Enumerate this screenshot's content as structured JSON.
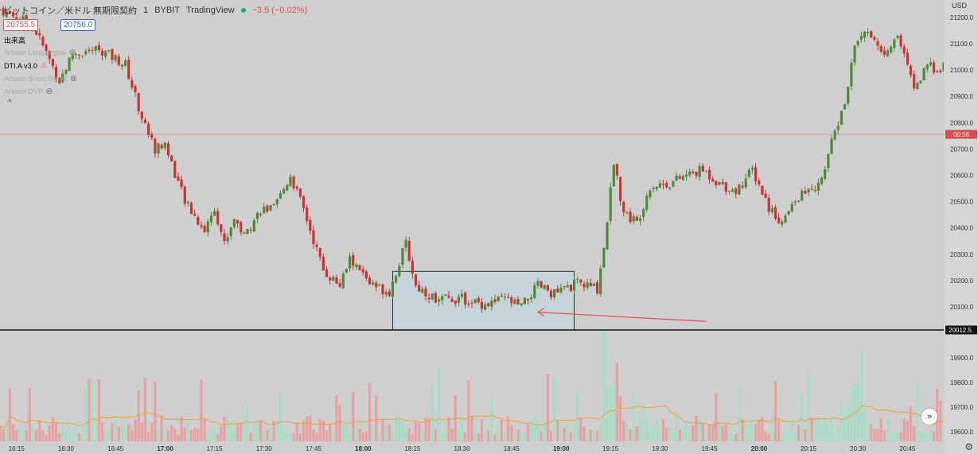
{
  "header": {
    "symbol": "ビットコイン／米ドル 無期限契約",
    "interval": "1",
    "exchange": "BYBIT",
    "platform": "TradingView",
    "change": "−3.5 (−0.02%)",
    "bid": "20755.5",
    "ask": "20756.0",
    "currency": "USD"
  },
  "indicators": [
    {
      "label": "出来高",
      "dim": false,
      "icon": ""
    },
    {
      "label": "Artisan Long Signal",
      "dim": true,
      "icon": "eye-off-icon"
    },
    {
      "label": "DTI.A v3.0",
      "dim": false,
      "icon": "warning-icon"
    },
    {
      "label": "Artisan Short Signal",
      "dim": true,
      "icon": "eye-off-icon"
    },
    {
      "label": "Artisan DVP",
      "dim": true,
      "icon": "eye-off-icon"
    }
  ],
  "collapse_glyph": "^",
  "forward_glyph": "»",
  "gear_glyph": "⚙",
  "price_axis": {
    "ticks": [
      "21200.0",
      "21100.0",
      "21000.0",
      "20900.0",
      "20800.0",
      "20700.0",
      "20600.0",
      "20500.0",
      "20400.0",
      "20300.0",
      "20200.0",
      "20100.0"
    ],
    "current_label": "00:56",
    "line_label": "20012.5"
  },
  "volume_axis": {
    "ticks": [
      "19900.0",
      "19800.0",
      "19700.0",
      "19600.0"
    ]
  },
  "time_axis": {
    "ticks": [
      "16:15",
      "16:30",
      "16:45",
      "17:00",
      "17:15",
      "17:30",
      "17:45",
      "18:00",
      "18:15",
      "18:30",
      "18:45",
      "19:00",
      "19:15",
      "19:30",
      "19:45",
      "20:00",
      "20:15",
      "20:30",
      "20:45"
    ],
    "bold": [
      "17:00",
      "18:00",
      "19:00",
      "20:00"
    ]
  },
  "colors": {
    "up": "#4e8a3a",
    "down": "#cc3333",
    "vol_up": "#a9dcc7",
    "vol_down": "#e9a0a0",
    "ma": "#f0a030",
    "box_fill": "#c4d4d8",
    "arrow": "#e05050",
    "current_line": "#d88080"
  },
  "chart_data": {
    "type": "candlestick",
    "x_range": [
      "16:10",
      "20:56"
    ],
    "ylim": [
      20012.5,
      21260
    ],
    "close_anchors": [
      {
        "t": "16:10",
        "p": 21230
      },
      {
        "t": "16:20",
        "p": 21170
      },
      {
        "t": "16:28",
        "p": 20960
      },
      {
        "t": "16:32",
        "p": 21060
      },
      {
        "t": "16:40",
        "p": 21080
      },
      {
        "t": "16:48",
        "p": 21020
      },
      {
        "t": "16:53",
        "p": 20820
      },
      {
        "t": "16:57",
        "p": 20700
      },
      {
        "t": "17:00",
        "p": 20720
      },
      {
        "t": "17:06",
        "p": 20500
      },
      {
        "t": "17:12",
        "p": 20390
      },
      {
        "t": "17:15",
        "p": 20480
      },
      {
        "t": "17:18",
        "p": 20340
      },
      {
        "t": "17:21",
        "p": 20440
      },
      {
        "t": "17:24",
        "p": 20370
      },
      {
        "t": "17:29",
        "p": 20470
      },
      {
        "t": "17:33",
        "p": 20470
      },
      {
        "t": "17:38",
        "p": 20600
      },
      {
        "t": "17:42",
        "p": 20470
      },
      {
        "t": "17:48",
        "p": 20240
      },
      {
        "t": "17:53",
        "p": 20180
      },
      {
        "t": "17:56",
        "p": 20280
      },
      {
        "t": "18:03",
        "p": 20180
      },
      {
        "t": "18:08",
        "p": 20160
      },
      {
        "t": "18:13",
        "p": 20340
      },
      {
        "t": "18:16",
        "p": 20180
      },
      {
        "t": "18:22",
        "p": 20130
      },
      {
        "t": "18:30",
        "p": 20130
      },
      {
        "t": "18:37",
        "p": 20110
      },
      {
        "t": "18:43",
        "p": 20130
      },
      {
        "t": "18:48",
        "p": 20100
      },
      {
        "t": "18:53",
        "p": 20180
      },
      {
        "t": "18:58",
        "p": 20150
      },
      {
        "t": "19:05",
        "p": 20190
      },
      {
        "t": "19:11",
        "p": 20170
      },
      {
        "t": "19:13",
        "p": 20330
      },
      {
        "t": "19:16",
        "p": 20640
      },
      {
        "t": "19:19",
        "p": 20460
      },
      {
        "t": "19:23",
        "p": 20420
      },
      {
        "t": "19:27",
        "p": 20560
      },
      {
        "t": "19:33",
        "p": 20570
      },
      {
        "t": "19:38",
        "p": 20600
      },
      {
        "t": "19:43",
        "p": 20620
      },
      {
        "t": "19:48",
        "p": 20570
      },
      {
        "t": "19:53",
        "p": 20540
      },
      {
        "t": "19:58",
        "p": 20620
      },
      {
        "t": "20:03",
        "p": 20480
      },
      {
        "t": "20:07",
        "p": 20420
      },
      {
        "t": "20:12",
        "p": 20520
      },
      {
        "t": "20:18",
        "p": 20560
      },
      {
        "t": "20:22",
        "p": 20720
      },
      {
        "t": "20:27",
        "p": 20920
      },
      {
        "t": "20:29",
        "p": 21110
      },
      {
        "t": "20:33",
        "p": 21160
      },
      {
        "t": "20:37",
        "p": 21060
      },
      {
        "t": "20:42",
        "p": 21130
      },
      {
        "t": "20:47",
        "p": 20930
      },
      {
        "t": "20:51",
        "p": 21010
      },
      {
        "t": "20:56",
        "p": 21010
      }
    ],
    "current_price": 20755.5,
    "horizontal_line": 20012.5,
    "annotation_box": {
      "t0": "18:09",
      "t1": "19:04",
      "p0": 20012.5,
      "p1": 20235
    },
    "annotation_arrow": {
      "from": {
        "t": "19:44",
        "p": 20045
      },
      "to": {
        "t": "18:53",
        "p": 20080
      }
    }
  }
}
